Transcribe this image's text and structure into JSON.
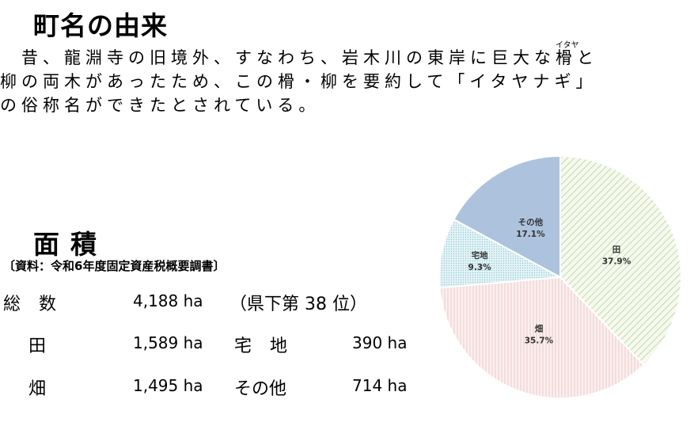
{
  "origin": {
    "title": "町名の由来",
    "lines": [
      "　昔、龍淵寺の旧境外、すなわち、岩木川の東岸に巨大な",
      "柳の両木があったため、この榾・柳を要約して「イタヤナギ」",
      "の俗称名ができたとされている。"
    ],
    "ruby_base": "榾",
    "ruby_text": "イタヤ",
    "line1_tail": "と"
  },
  "area": {
    "title": "面積",
    "source": "〔資料：令和6年度固定資産税概要調書〕",
    "total_label": "総 数",
    "total_value": "4,188 ha",
    "total_rank": "（県下第 38 位）",
    "rows": [
      {
        "label": "田",
        "value": "1,589 ha",
        "label2": "宅 地",
        "value2": "390 ha"
      },
      {
        "label": "畑",
        "value": "1,495 ha",
        "label2": "その他",
        "value2": "714 ha"
      }
    ]
  },
  "chart_data": {
    "type": "pie",
    "slices": [
      {
        "label": "田",
        "value": 37.9,
        "display": "37.9%",
        "color": "#dbe8c6"
      },
      {
        "label": "畑",
        "value": 35.7,
        "display": "35.7%",
        "color": "#f4dcdc"
      },
      {
        "label": "宅地",
        "value": 9.3,
        "display": "9.3%",
        "color": "#c9e6ec"
      },
      {
        "label": "その他",
        "value": 17.1,
        "display": "17.1%",
        "color": "#a8bedb"
      }
    ]
  }
}
